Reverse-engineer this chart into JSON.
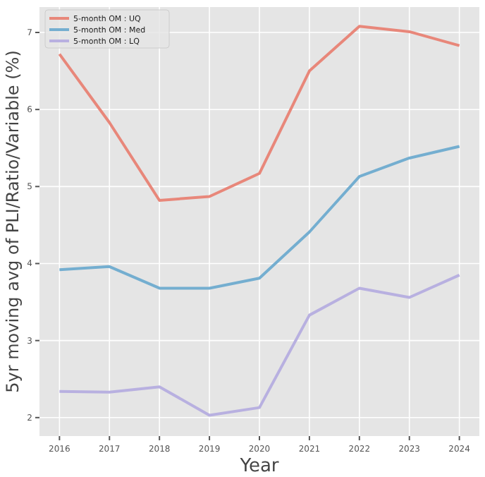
{
  "chart_data": {
    "type": "line",
    "xlabel": "Year",
    "ylabel": "5yr moving avg of PLI/Ratio/Variable (%)",
    "x": [
      2016,
      2017,
      2018,
      2019,
      2020,
      2021,
      2022,
      2023,
      2024
    ],
    "xlim": [
      2015.6,
      2024.4
    ],
    "xticks": [
      2016,
      2017,
      2018,
      2019,
      2020,
      2021,
      2022,
      2023,
      2024
    ],
    "ylim": [
      1.76,
      7.33
    ],
    "yticks": [
      2,
      3,
      4,
      5,
      6,
      7
    ],
    "grid": true,
    "legend": "top left",
    "series": [
      {
        "name": "5-month OM : UQ",
        "color": "#e8877a",
        "values": [
          6.72,
          5.83,
          4.82,
          4.87,
          5.17,
          6.5,
          7.08,
          7.01,
          6.83
        ]
      },
      {
        "name": "5-month OM : Med",
        "color": "#74aed0",
        "values": [
          3.92,
          3.96,
          3.68,
          3.68,
          3.81,
          4.41,
          5.13,
          5.37,
          5.52
        ]
      },
      {
        "name": "5-month OM : LQ",
        "color": "#b8b0e0",
        "values": [
          2.34,
          2.33,
          2.4,
          2.03,
          2.13,
          3.33,
          3.68,
          3.56,
          3.85
        ]
      }
    ]
  }
}
